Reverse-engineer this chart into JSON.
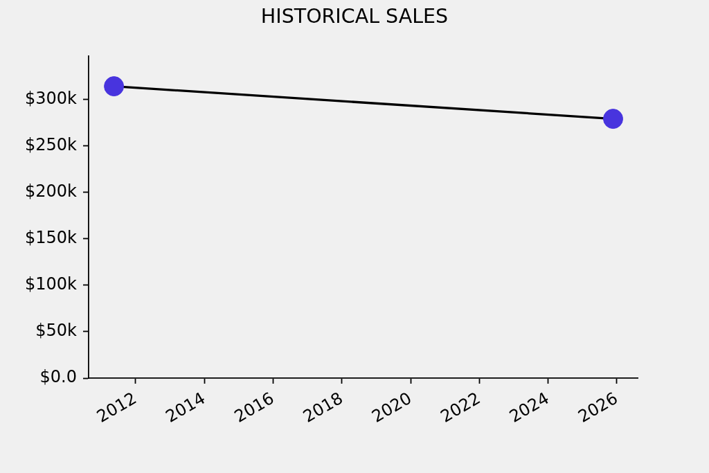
{
  "chart_data": {
    "type": "line",
    "title": "HISTORICAL SALES",
    "x": [
      "2011-05-16",
      "2025-11-22"
    ],
    "series": [
      {
        "color": "#000000",
        "colors": [
          "#4834de",
          "#4834de"
        ],
        "values": [
          314000,
          279000
        ]
      }
    ],
    "xlim": [
      "2010-08-20",
      "2026-08-10"
    ],
    "xticks": [
      "2012",
      "2014",
      "2016",
      "2018",
      "2020",
      "2022",
      "2024",
      "2026"
    ],
    "ylim": [
      0,
      346500
    ],
    "yticks": [
      {
        "value": 0,
        "label": "$0.0"
      },
      {
        "value": 50000,
        "label": "$50k"
      },
      {
        "value": 100000,
        "label": "$100k"
      },
      {
        "value": 150000,
        "label": "$150k"
      },
      {
        "value": 200000,
        "label": "$200k"
      },
      {
        "value": 250000,
        "label": "$250k"
      },
      {
        "value": 300000,
        "label": "$300k"
      }
    ],
    "marker": "circle",
    "line_style": "solid",
    "grid": false
  }
}
